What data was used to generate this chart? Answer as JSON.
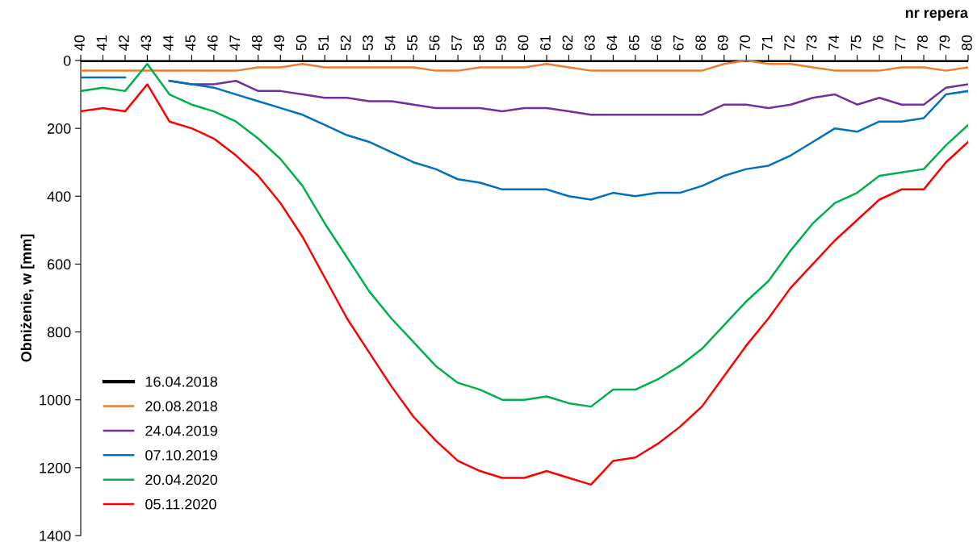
{
  "chart_data": {
    "type": "line",
    "xlabel": "nr repera",
    "ylabel": "Obniżenie, w [mm]",
    "categories": [
      "40",
      "41",
      "42",
      "43",
      "44",
      "45",
      "46",
      "47",
      "48",
      "49",
      "50",
      "51",
      "52",
      "53",
      "54",
      "55",
      "56",
      "57",
      "58",
      "59",
      "60",
      "61",
      "62",
      "63",
      "64",
      "65",
      "66",
      "67",
      "68",
      "69",
      "70",
      "71",
      "72",
      "73",
      "74",
      "75",
      "76",
      "77",
      "78",
      "79",
      "80"
    ],
    "ylim": [
      1400,
      0
    ],
    "yticks": [
      0,
      200,
      400,
      600,
      800,
      1000,
      1200,
      1400
    ],
    "grid": false,
    "legend": "bottom left",
    "marker": "none",
    "line_style": "solid",
    "series": [
      {
        "name": "16.04.2018",
        "color": "#000000",
        "values": [
          0,
          0,
          0,
          0,
          0,
          0,
          0,
          0,
          0,
          0,
          0,
          0,
          0,
          0,
          0,
          0,
          0,
          0,
          0,
          0,
          0,
          0,
          0,
          0,
          0,
          0,
          0,
          0,
          0,
          0,
          0,
          0,
          0,
          0,
          0,
          0,
          0,
          0,
          0,
          0,
          0
        ]
      },
      {
        "name": "20.08.2018",
        "color": "#ed7d31",
        "values": [
          30,
          30,
          30,
          30,
          30,
          30,
          30,
          30,
          20,
          20,
          10,
          20,
          20,
          20,
          20,
          20,
          30,
          30,
          20,
          20,
          20,
          10,
          20,
          30,
          30,
          30,
          30,
          30,
          30,
          10,
          0,
          10,
          10,
          20,
          30,
          30,
          30,
          20,
          20,
          30,
          20
        ]
      },
      {
        "name": "24.04.2019",
        "color": "#7030a0",
        "values": [
          null,
          null,
          null,
          null,
          60,
          70,
          70,
          60,
          90,
          90,
          100,
          110,
          110,
          120,
          120,
          130,
          140,
          140,
          140,
          150,
          140,
          140,
          150,
          160,
          160,
          160,
          160,
          160,
          160,
          130,
          130,
          140,
          130,
          110,
          100,
          130,
          110,
          130,
          130,
          80,
          70
        ]
      },
      {
        "name": "07.10.2019",
        "color": "#0070c0",
        "values": [
          50,
          50,
          50,
          null,
          60,
          70,
          80,
          100,
          120,
          140,
          160,
          190,
          220,
          240,
          270,
          300,
          320,
          350,
          360,
          380,
          380,
          380,
          400,
          410,
          390,
          400,
          390,
          390,
          370,
          340,
          320,
          310,
          280,
          240,
          200,
          210,
          180,
          180,
          170,
          100,
          90
        ]
      },
      {
        "name": "20.04.2020",
        "color": "#00b050",
        "values": [
          90,
          80,
          90,
          10,
          100,
          130,
          150,
          180,
          230,
          290,
          370,
          480,
          580,
          680,
          760,
          830,
          900,
          950,
          970,
          1000,
          1000,
          990,
          1010,
          1020,
          970,
          970,
          940,
          900,
          850,
          780,
          710,
          650,
          560,
          480,
          420,
          390,
          340,
          330,
          320,
          250,
          190
        ]
      },
      {
        "name": "05.11.2020",
        "color": "#ff0000",
        "values": [
          150,
          140,
          150,
          70,
          180,
          200,
          230,
          280,
          340,
          420,
          520,
          640,
          760,
          860,
          960,
          1050,
          1120,
          1180,
          1210,
          1230,
          1230,
          1210,
          1230,
          1250,
          1180,
          1170,
          1130,
          1080,
          1020,
          930,
          840,
          760,
          670,
          600,
          530,
          470,
          410,
          380,
          380,
          300,
          240
        ]
      }
    ]
  }
}
